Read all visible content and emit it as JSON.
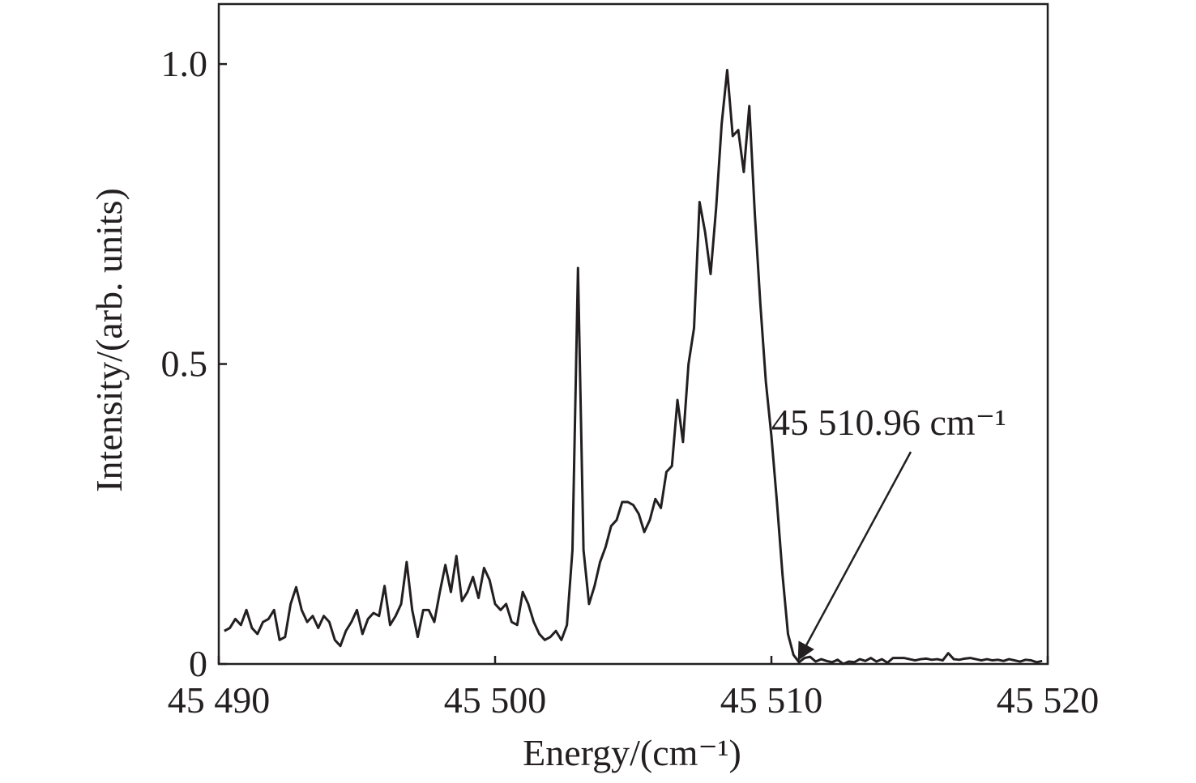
{
  "chart_data": {
    "type": "line",
    "xlabel": "Energy/(cm⁻¹)",
    "ylabel": "Intensity/(arb. units)",
    "color": "#231f20",
    "xlim": [
      45490,
      45520
    ],
    "ylim": [
      0,
      1.1
    ],
    "xticks": [
      {
        "value": 45490,
        "label": "45 490"
      },
      {
        "value": 45500,
        "label": "45 500"
      },
      {
        "value": 45510,
        "label": "45 510"
      },
      {
        "value": 45520,
        "label": "45 520"
      }
    ],
    "yticks": [
      0,
      0.5,
      {
        "value": 1,
        "label": "1.0"
      }
    ],
    "annotations": [
      {
        "text": "45 510.96 cm⁻¹",
        "x": 45510.96,
        "y": 0
      }
    ],
    "x": [
      45490.2,
      45490.4,
      45490.6,
      45490.8,
      45491,
      45491.2,
      45491.4,
      45491.6,
      45491.8,
      45492,
      45492.2,
      45492.4,
      45492.6,
      45492.8,
      45493,
      45493.2,
      45493.4,
      45493.6,
      45493.8,
      45494,
      45494.2,
      45494.4,
      45494.6,
      45494.8,
      45495,
      45495.2,
      45495.4,
      45495.6,
      45495.8,
      45496,
      45496.2,
      45496.4,
      45496.6,
      45496.8,
      45497,
      45497.2,
      45497.4,
      45497.6,
      45497.8,
      45498,
      45498.2,
      45498.4,
      45498.6,
      45498.8,
      45499,
      45499.2,
      45499.4,
      45499.6,
      45499.8,
      45500,
      45500.2,
      45500.4,
      45500.6,
      45500.8,
      45501,
      45501.2,
      45501.4,
      45501.6,
      45501.8,
      45502,
      45502.2,
      45502.4,
      45502.6,
      45502.8,
      45503,
      45503.2,
      45503.4,
      45503.6,
      45503.8,
      45504,
      45504.2,
      45504.4,
      45504.6,
      45504.8,
      45505,
      45505.2,
      45505.4,
      45505.6,
      45505.8,
      45506,
      45506.2,
      45506.4,
      45506.6,
      45506.8,
      45507,
      45507.2,
      45507.4,
      45507.6,
      45507.8,
      45508,
      45508.2,
      45508.4,
      45508.6,
      45508.8,
      45509,
      45509.2,
      45509.4,
      45509.6,
      45509.8,
      45510,
      45510.2,
      45510.4,
      45510.6,
      45510.8,
      45511,
      45511.2,
      45511.4,
      45511.6,
      45511.8,
      45512,
      45512.2,
      45512.4,
      45512.6,
      45512.8,
      45513,
      45513.2,
      45513.4,
      45513.6,
      45513.8,
      45514,
      45514.2,
      45514.4,
      45514.6,
      45514.8,
      45515,
      45515.2,
      45515.4,
      45515.6,
      45515.8,
      45516,
      45516.2,
      45516.4,
      45516.6,
      45516.8,
      45517,
      45517.2,
      45517.4,
      45517.6,
      45517.8,
      45518,
      45518.2,
      45518.4,
      45518.6,
      45518.8,
      45519,
      45519.2,
      45519.4,
      45519.6,
      45519.8
    ],
    "values": [
      0.055,
      0.06,
      0.075,
      0.065,
      0.09,
      0.06,
      0.05,
      0.07,
      0.075,
      0.09,
      0.04,
      0.045,
      0.1,
      0.128,
      0.09,
      0.07,
      0.08,
      0.06,
      0.08,
      0.07,
      0.04,
      0.03,
      0.055,
      0.07,
      0.09,
      0.05,
      0.075,
      0.085,
      0.08,
      0.13,
      0.065,
      0.08,
      0.1,
      0.17,
      0.09,
      0.045,
      0.09,
      0.09,
      0.07,
      0.12,
      0.165,
      0.12,
      0.18,
      0.105,
      0.12,
      0.145,
      0.11,
      0.16,
      0.14,
      0.1,
      0.09,
      0.1,
      0.07,
      0.065,
      0.12,
      0.1,
      0.07,
      0.05,
      0.04,
      0.045,
      0.055,
      0.04,
      0.065,
      0.19,
      0.66,
      0.19,
      0.1,
      0.13,
      0.17,
      0.195,
      0.23,
      0.24,
      0.27,
      0.27,
      0.265,
      0.25,
      0.22,
      0.24,
      0.275,
      0.26,
      0.32,
      0.33,
      0.44,
      0.37,
      0.5,
      0.56,
      0.77,
      0.72,
      0.65,
      0.76,
      0.9,
      0.99,
      0.88,
      0.89,
      0.82,
      0.93,
      0.75,
      0.6,
      0.47,
      0.38,
      0.27,
      0.15,
      0.05,
      0.015,
      0.003,
      0.01,
      0.012,
      0.004,
      0.008,
      0.005,
      0.003,
      0.007,
      0,
      0.004,
      0.003,
      0.008,
      0.005,
      0.01,
      0.004,
      0.008,
      0.002,
      0.01,
      0.01,
      0.01,
      0.008,
      0.006,
      0.008,
      0.009,
      0.007,
      0.008,
      0.006,
      0.018,
      0.008,
      0.007,
      0.009,
      0.01,
      0.008,
      0.006,
      0.008,
      0.006,
      0.007,
      0.005,
      0.008,
      0.006,
      0.004,
      0.007,
      0.006,
      0.003,
      0.005
    ]
  }
}
